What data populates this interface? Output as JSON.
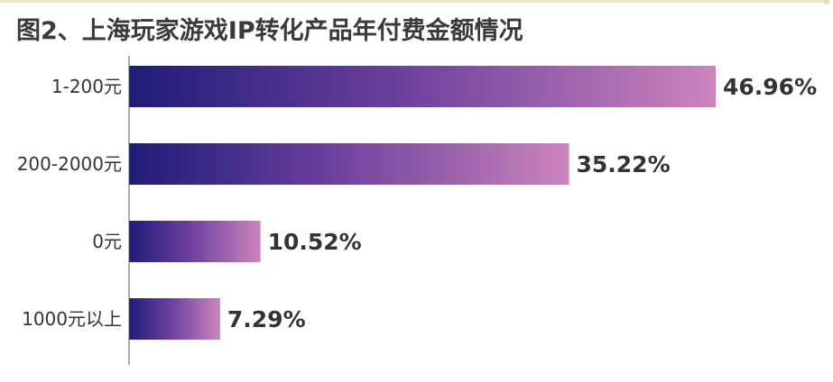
{
  "chart_data": {
    "type": "bar",
    "orientation": "horizontal",
    "title": "图2、上海玩家游戏IP转化产品年付费金额情况",
    "categories": [
      "1-200元",
      "200-2000元",
      "0元",
      "1000元以上"
    ],
    "values": [
      46.96,
      35.22,
      10.52,
      7.29
    ],
    "value_labels": [
      "46.96%",
      "35.22%",
      "10.52%",
      "7.29%"
    ],
    "unit": "%",
    "xlim": [
      0,
      50
    ],
    "grid": false,
    "legend": "none",
    "colors": {
      "bar_gradient_start": "#1f1c78",
      "bar_gradient_mid": "#6a3f9c",
      "bar_gradient_end": "#cc84bd",
      "axis": "#555555",
      "text": "#333333",
      "title": "#3a3a3a"
    }
  }
}
